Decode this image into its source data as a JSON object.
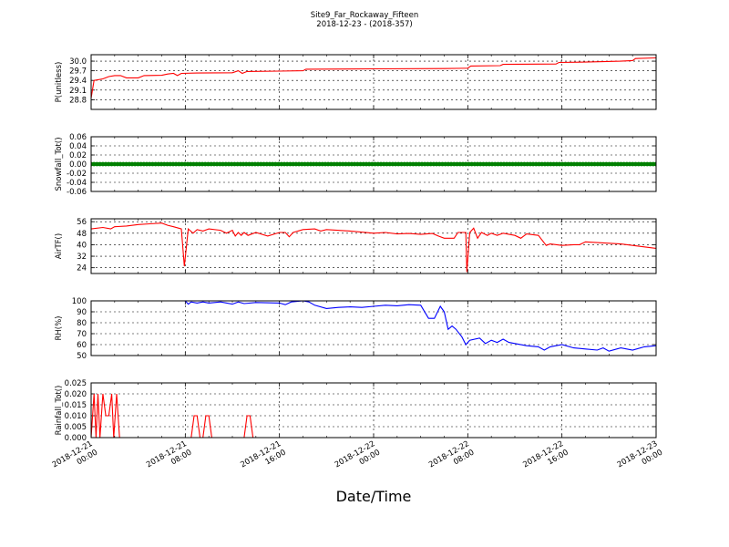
{
  "figure": {
    "title_line1": "Site9_Far_Rockaway_Fifteen",
    "title_line2": "2018-12-23 - (2018-357)",
    "xlabel": "Date/Time"
  },
  "chart_data": {
    "type": "line",
    "x_range": [
      "2018-12-21 00:00",
      "2018-12-23 00:00"
    ],
    "x_ticks": [
      {
        "time": "2018-12-21 00:00",
        "line1": "2018-12-21",
        "line2": "00:00"
      },
      {
        "time": "2018-12-21 08:00",
        "line1": "2018-12-21",
        "line2": "08:00"
      },
      {
        "time": "2018-12-21 16:00",
        "line1": "2018-12-21",
        "line2": "16:00"
      },
      {
        "time": "2018-12-22 00:00",
        "line1": "2018-12-22",
        "line2": "00:00"
      },
      {
        "time": "2018-12-22 08:00",
        "line1": "2018-12-22",
        "line2": "08:00"
      },
      {
        "time": "2018-12-22 16:00",
        "line1": "2018-12-22",
        "line2": "16:00"
      },
      {
        "time": "2018-12-23 00:00",
        "line1": "2018-12-23",
        "line2": "00:00"
      }
    ],
    "grid": true,
    "panels": [
      {
        "id": "pressure",
        "ylabel": "P(unitless)",
        "ylim": [
          28.5,
          30.2
        ],
        "yticks": [
          "28.8",
          "29.1",
          "29.4",
          "29.7",
          "30.0"
        ],
        "color": "#ff0000",
        "style": "line",
        "series": [
          [
            "2018-12-21 00:00",
            28.85
          ],
          [
            "2018-12-21 00:15",
            29.4
          ],
          [
            "2018-12-21 01:00",
            29.45
          ],
          [
            "2018-12-21 01:30",
            29.52
          ],
          [
            "2018-12-21 02:00",
            29.55
          ],
          [
            "2018-12-21 02:30",
            29.55
          ],
          [
            "2018-12-21 03:00",
            29.48
          ],
          [
            "2018-12-21 04:00",
            29.48
          ],
          [
            "2018-12-21 04:30",
            29.55
          ],
          [
            "2018-12-21 06:00",
            29.56
          ],
          [
            "2018-12-21 06:30",
            29.6
          ],
          [
            "2018-12-21 07:00",
            29.62
          ],
          [
            "2018-12-21 07:20",
            29.55
          ],
          [
            "2018-12-21 07:40",
            29.62
          ],
          [
            "2018-12-21 09:00",
            29.63
          ],
          [
            "2018-12-21 12:00",
            29.64
          ],
          [
            "2018-12-21 12:30",
            29.7
          ],
          [
            "2018-12-21 12:50",
            29.62
          ],
          [
            "2018-12-21 13:15",
            29.68
          ],
          [
            "2018-12-21 16:00",
            29.69
          ],
          [
            "2018-12-21 18:00",
            29.7
          ],
          [
            "2018-12-21 18:15",
            29.75
          ],
          [
            "2018-12-22 00:00",
            29.76
          ],
          [
            "2018-12-22 06:00",
            29.77
          ],
          [
            "2018-12-22 08:00",
            29.78
          ],
          [
            "2018-12-22 08:15",
            29.85
          ],
          [
            "2018-12-22 10:45",
            29.86
          ],
          [
            "2018-12-22 11:00",
            29.9
          ],
          [
            "2018-12-22 15:30",
            29.91
          ],
          [
            "2018-12-22 15:45",
            29.96
          ],
          [
            "2018-12-22 18:00",
            29.97
          ],
          [
            "2018-12-22 21:00",
            30.0
          ],
          [
            "2018-12-22 22:00",
            30.02
          ],
          [
            "2018-12-22 22:15",
            30.08
          ],
          [
            "2018-12-23 00:00",
            30.1
          ]
        ]
      },
      {
        "id": "snowfall",
        "ylabel": "Snowfall_Tot()",
        "ylim": [
          -0.06,
          0.06
        ],
        "yticks": [
          "-0.06",
          "-0.04",
          "-0.02",
          "0.00",
          "0.02",
          "0.04",
          "0.06"
        ],
        "color": "#008000",
        "style": "markers",
        "constant_value": 0.0
      },
      {
        "id": "airtemp",
        "ylabel": "AirTF()",
        "ylim": [
          20,
          58
        ],
        "yticks": [
          "24",
          "32",
          "40",
          "48",
          "56"
        ],
        "color": "#ff0000",
        "style": "line",
        "series": [
          [
            "2018-12-21 00:00",
            51
          ],
          [
            "2018-12-21 01:00",
            52
          ],
          [
            "2018-12-21 01:40",
            51
          ],
          [
            "2018-12-21 02:00",
            52.5
          ],
          [
            "2018-12-21 03:00",
            53
          ],
          [
            "2018-12-21 04:00",
            54
          ],
          [
            "2018-12-21 05:00",
            54.5
          ],
          [
            "2018-12-21 06:00",
            55
          ],
          [
            "2018-12-21 06:30",
            53.5
          ],
          [
            "2018-12-21 07:00",
            52.5
          ],
          [
            "2018-12-21 07:40",
            51
          ],
          [
            "2018-12-21 07:55",
            25
          ],
          [
            "2018-12-21 08:15",
            51
          ],
          [
            "2018-12-21 08:40",
            48
          ],
          [
            "2018-12-21 09:00",
            50.5
          ],
          [
            "2018-12-21 09:30",
            49.5
          ],
          [
            "2018-12-21 10:00",
            51
          ],
          [
            "2018-12-21 11:00",
            50
          ],
          [
            "2018-12-21 11:30",
            48
          ],
          [
            "2018-12-21 12:00",
            50
          ],
          [
            "2018-12-21 12:15",
            46
          ],
          [
            "2018-12-21 12:30",
            48.5
          ],
          [
            "2018-12-21 12:45",
            46.5
          ],
          [
            "2018-12-21 13:00",
            48.5
          ],
          [
            "2018-12-21 13:20",
            46.5
          ],
          [
            "2018-12-21 14:00",
            48.5
          ],
          [
            "2018-12-21 15:00",
            46
          ],
          [
            "2018-12-21 16:00",
            48.5
          ],
          [
            "2018-12-21 16:30",
            48.5
          ],
          [
            "2018-12-21 16:50",
            45.5
          ],
          [
            "2018-12-21 17:10",
            48.5
          ],
          [
            "2018-12-21 18:00",
            50.5
          ],
          [
            "2018-12-21 19:00",
            51
          ],
          [
            "2018-12-21 19:30",
            49.5
          ],
          [
            "2018-12-21 20:00",
            50.5
          ],
          [
            "2018-12-21 22:00",
            49.5
          ],
          [
            "2018-12-22 00:00",
            48
          ],
          [
            "2018-12-22 01:00",
            48.5
          ],
          [
            "2018-12-22 02:00",
            47.5
          ],
          [
            "2018-12-22 03:00",
            47.8
          ],
          [
            "2018-12-22 04:00",
            47.2
          ],
          [
            "2018-12-22 05:00",
            47.8
          ],
          [
            "2018-12-22 05:30",
            46
          ],
          [
            "2018-12-22 06:00",
            44.5
          ],
          [
            "2018-12-22 06:50",
            44.5
          ],
          [
            "2018-12-22 07:10",
            48.5
          ],
          [
            "2018-12-22 07:50",
            48.5
          ],
          [
            "2018-12-22 07:55",
            21
          ],
          [
            "2018-12-22 08:10",
            48.5
          ],
          [
            "2018-12-22 08:30",
            51.5
          ],
          [
            "2018-12-22 08:50",
            44.5
          ],
          [
            "2018-12-22 09:10",
            48.5
          ],
          [
            "2018-12-22 09:40",
            46.5
          ],
          [
            "2018-12-22 10:00",
            48
          ],
          [
            "2018-12-22 10:30",
            46.5
          ],
          [
            "2018-12-22 11:00",
            48
          ],
          [
            "2018-12-22 12:00",
            46.5
          ],
          [
            "2018-12-22 12:30",
            44.5
          ],
          [
            "2018-12-22 13:00",
            47.5
          ],
          [
            "2018-12-22 14:00",
            46.5
          ],
          [
            "2018-12-22 14:40",
            39.5
          ],
          [
            "2018-12-22 15:00",
            40.5
          ],
          [
            "2018-12-22 16:00",
            39.5
          ],
          [
            "2018-12-22 17:00",
            40
          ],
          [
            "2018-12-22 17:30",
            40
          ],
          [
            "2018-12-22 18:00",
            42
          ],
          [
            "2018-12-22 19:00",
            41.5
          ],
          [
            "2018-12-22 21:00",
            40.5
          ],
          [
            "2018-12-22 22:00",
            39.5
          ],
          [
            "2018-12-23 00:00",
            37.5
          ]
        ]
      },
      {
        "id": "rh",
        "ylabel": "RH(%)",
        "ylim": [
          50,
          100
        ],
        "yticks": [
          "50",
          "60",
          "70",
          "80",
          "90",
          "100"
        ],
        "color": "#0000ff",
        "style": "line",
        "series": [
          [
            "2018-12-21 08:00",
            100
          ],
          [
            "2018-12-21 08:15",
            97
          ],
          [
            "2018-12-21 08:30",
            99
          ],
          [
            "2018-12-21 09:00",
            98
          ],
          [
            "2018-12-21 09:30",
            99
          ],
          [
            "2018-12-21 10:00",
            98
          ],
          [
            "2018-12-21 11:00",
            99
          ],
          [
            "2018-12-21 12:00",
            97
          ],
          [
            "2018-12-21 12:30",
            99
          ],
          [
            "2018-12-21 13:00",
            97.5
          ],
          [
            "2018-12-21 14:00",
            98.5
          ],
          [
            "2018-12-21 16:00",
            98
          ],
          [
            "2018-12-21 16:30",
            96.5
          ],
          [
            "2018-12-21 17:00",
            99
          ],
          [
            "2018-12-21 18:00",
            100
          ],
          [
            "2018-12-21 18:30",
            99
          ],
          [
            "2018-12-21 19:00",
            96
          ],
          [
            "2018-12-21 20:00",
            93
          ],
          [
            "2018-12-21 21:00",
            94
          ],
          [
            "2018-12-21 22:00",
            94.5
          ],
          [
            "2018-12-21 23:00",
            94
          ],
          [
            "2018-12-22 00:00",
            95
          ],
          [
            "2018-12-22 01:00",
            96
          ],
          [
            "2018-12-22 02:00",
            95.5
          ],
          [
            "2018-12-22 03:00",
            96.5
          ],
          [
            "2018-12-22 04:00",
            96
          ],
          [
            "2018-12-22 04:40",
            84
          ],
          [
            "2018-12-22 05:10",
            84
          ],
          [
            "2018-12-22 05:40",
            95
          ],
          [
            "2018-12-22 06:00",
            90
          ],
          [
            "2018-12-22 06:20",
            74
          ],
          [
            "2018-12-22 06:40",
            77
          ],
          [
            "2018-12-22 07:00",
            74
          ],
          [
            "2018-12-22 07:30",
            67
          ],
          [
            "2018-12-22 07:50",
            60
          ],
          [
            "2018-12-22 08:10",
            64
          ],
          [
            "2018-12-22 09:00",
            66
          ],
          [
            "2018-12-22 09:30",
            61
          ],
          [
            "2018-12-22 10:00",
            64
          ],
          [
            "2018-12-22 10:30",
            62
          ],
          [
            "2018-12-22 11:00",
            65
          ],
          [
            "2018-12-22 11:30",
            62
          ],
          [
            "2018-12-22 12:00",
            61
          ],
          [
            "2018-12-22 13:00",
            59
          ],
          [
            "2018-12-22 14:00",
            58
          ],
          [
            "2018-12-22 14:30",
            55
          ],
          [
            "2018-12-22 15:00",
            58
          ],
          [
            "2018-12-22 16:00",
            60
          ],
          [
            "2018-12-22 17:00",
            57
          ],
          [
            "2018-12-22 18:00",
            56
          ],
          [
            "2018-12-22 19:00",
            55
          ],
          [
            "2018-12-22 19:30",
            57
          ],
          [
            "2018-12-22 20:00",
            54
          ],
          [
            "2018-12-22 21:00",
            57
          ],
          [
            "2018-12-22 22:00",
            55
          ],
          [
            "2018-12-22 23:00",
            58
          ],
          [
            "2018-12-23 00:00",
            59
          ]
        ]
      },
      {
        "id": "rainfall",
        "ylabel": "Rainfall_Tot()",
        "ylim": [
          0,
          0.025
        ],
        "yticks": [
          "0.000",
          "0.005",
          "0.010",
          "0.015",
          "0.020",
          "0.025"
        ],
        "color": "#ff0000",
        "style": "line",
        "series": [
          [
            "2018-12-21 00:00",
            0.0
          ],
          [
            "2018-12-21 00:15",
            0.02
          ],
          [
            "2018-12-21 00:25",
            0.0
          ],
          [
            "2018-12-21 00:35",
            0.02
          ],
          [
            "2018-12-21 00:45",
            0.0
          ],
          [
            "2018-12-21 01:00",
            0.02
          ],
          [
            "2018-12-21 01:15",
            0.01
          ],
          [
            "2018-12-21 01:30",
            0.01
          ],
          [
            "2018-12-21 01:45",
            0.02
          ],
          [
            "2018-12-21 01:55",
            0.0
          ],
          [
            "2018-12-21 02:10",
            0.02
          ],
          [
            "2018-12-21 02:25",
            0.0
          ],
          [
            "2018-12-21 08:30",
            0.0
          ],
          [
            "2018-12-21 08:45",
            0.01
          ],
          [
            "2018-12-21 09:00",
            0.01
          ],
          [
            "2018-12-21 09:15",
            0.0
          ],
          [
            "2018-12-21 09:30",
            0.0
          ],
          [
            "2018-12-21 09:45",
            0.01
          ],
          [
            "2018-12-21 10:00",
            0.01
          ],
          [
            "2018-12-21 10:15",
            0.0
          ],
          [
            "2018-12-21 13:00",
            0.0
          ],
          [
            "2018-12-21 13:15",
            0.01
          ],
          [
            "2018-12-21 13:30",
            0.01
          ],
          [
            "2018-12-21 13:45",
            0.0
          ],
          [
            "2018-12-23 00:00",
            0.0
          ]
        ]
      }
    ]
  }
}
